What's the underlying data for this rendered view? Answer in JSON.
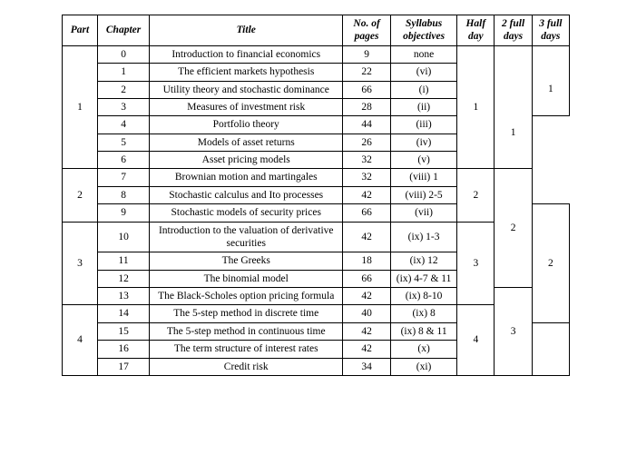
{
  "headers": {
    "part": "Part",
    "chapter": "Chapter",
    "title": "Title",
    "pages_l1": "No. of",
    "pages_l2": "pages",
    "obj_l1": "Syllabus",
    "obj_l2": "objectives",
    "half_l1": "Half",
    "half_l2": "day",
    "twofull_l1": "2 full",
    "twofull_l2": "days",
    "threefull_l1": "3 full",
    "threefull_l2": "days"
  },
  "colors": {
    "border": "#000000",
    "text": "#000000",
    "background": "#ffffff"
  },
  "font": {
    "family": "Times New Roman",
    "size_pt": 9,
    "header_style": "bold italic"
  },
  "rows": [
    {
      "part": "1",
      "part_span": 7,
      "chapter": "0",
      "title": "Introduction to financial economics",
      "pages": "9",
      "obj": "none",
      "half": "1",
      "half_span": 7,
      "half_start": true,
      "two": "1",
      "two_span": 7,
      "two_offset": true,
      "three": "1",
      "three_span": 4,
      "three_offset": true
    },
    {
      "chapter": "1",
      "title": "The efficient markets hypothesis",
      "pages": "22",
      "obj": "(vi)"
    },
    {
      "chapter": "2",
      "title": "Utility theory and stochastic dominance",
      "pages": "66",
      "obj": "(i)",
      "two_start_here": true
    },
    {
      "chapter": "3",
      "title": "Measures of investment risk",
      "pages": "28",
      "obj": "(ii)",
      "three_start_here": true
    },
    {
      "chapter": "4",
      "title": "Portfolio theory",
      "pages": "44",
      "obj": "(iii)"
    },
    {
      "chapter": "5",
      "title": "Models of asset returns",
      "pages": "26",
      "obj": "(iv)"
    },
    {
      "chapter": "6",
      "title": "Asset pricing models",
      "pages": "32",
      "obj": "(v)"
    },
    {
      "part": "2",
      "part_span": 3,
      "chapter": "7",
      "title": "Brownian motion and martingales",
      "pages": "32",
      "obj": "(viii) 1",
      "half": "2",
      "half_span": 3,
      "half_start": true,
      "three": "2",
      "three_span": 6,
      "three_start": true
    },
    {
      "chapter": "8",
      "title": "Stochastic calculus and Ito processes",
      "pages": "42",
      "obj": "(viii) 2-5"
    },
    {
      "chapter": "9",
      "title": "Stochastic models of security prices",
      "pages": "66",
      "obj": "(vii)",
      "two": "2",
      "two_span": 6,
      "two_start": true
    },
    {
      "part": "3",
      "part_span": 4,
      "chapter": "10",
      "title": "Introduction to the valuation of derivative securities",
      "pages": "42",
      "obj": "(ix) 1-3",
      "half": "3",
      "half_span": 4,
      "half_start": true
    },
    {
      "chapter": "11",
      "title": "The Greeks",
      "pages": "18",
      "obj": "(ix) 12"
    },
    {
      "chapter": "12",
      "title": "The binomial model",
      "pages": "66",
      "obj": "(ix) 4-7 & 11"
    },
    {
      "chapter": "13",
      "title": "The Black-Scholes option pricing formula",
      "pages": "42",
      "obj": "(ix) 8-10",
      "three": "3",
      "three_span": 5,
      "three_start": true
    },
    {
      "part": "4",
      "part_span": 4,
      "chapter": "14",
      "title": "The 5-step method in discrete time",
      "pages": "40",
      "obj": "(ix) 8",
      "half": "4",
      "half_span": 4,
      "half_start": true
    },
    {
      "chapter": "15",
      "title": "The 5-step method in continuous time",
      "pages": "42",
      "obj": "(ix) 8 & 11",
      "two": "",
      "two_span": 3,
      "two_start": true
    },
    {
      "chapter": "16",
      "title": "The term structure of interest rates",
      "pages": "42",
      "obj": "(x)"
    },
    {
      "chapter": "17",
      "title": "Credit risk",
      "pages": "34",
      "obj": "(xi)"
    }
  ]
}
